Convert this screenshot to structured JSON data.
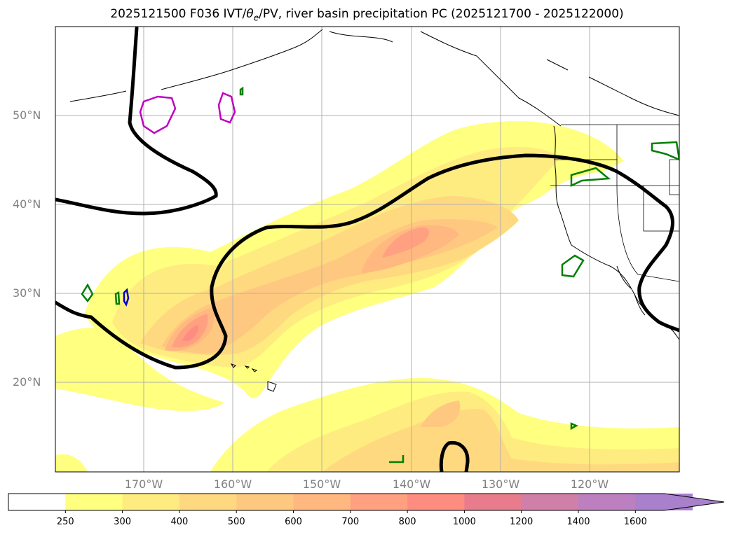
{
  "title_main": "2025121500 F036 IVT/",
  "title_theta": "θ",
  "title_sub": "e",
  "title_rest": "/PV, river basin precipitation PC (2025121700 - 2025122000)",
  "lat_labels": [
    "50°N",
    "40°N",
    "30°N",
    "20°N"
  ],
  "lon_labels": [
    "170°W",
    "160°W",
    "150°W",
    "140°W",
    "130°W",
    "120°W"
  ],
  "colorbar": {
    "labels": [
      "250",
      "300",
      "400",
      "500",
      "600",
      "700",
      "800",
      "1000",
      "1200",
      "1400",
      "1600"
    ],
    "colors": [
      "#ffffff",
      "#ffff80",
      "#ffec80",
      "#ffd980",
      "#ffc880",
      "#ffb880",
      "#ffa080",
      "#ff8c80",
      "#e87c8c",
      "#d080a8",
      "#bc80c0",
      "#a880cc"
    ]
  },
  "colors": {
    "contour_black": "#000000",
    "magenta": "#c000c0",
    "green": "#008000",
    "blue": "#0000d0",
    "grid": "#b0b0b0",
    "label_gray": "#808080"
  }
}
